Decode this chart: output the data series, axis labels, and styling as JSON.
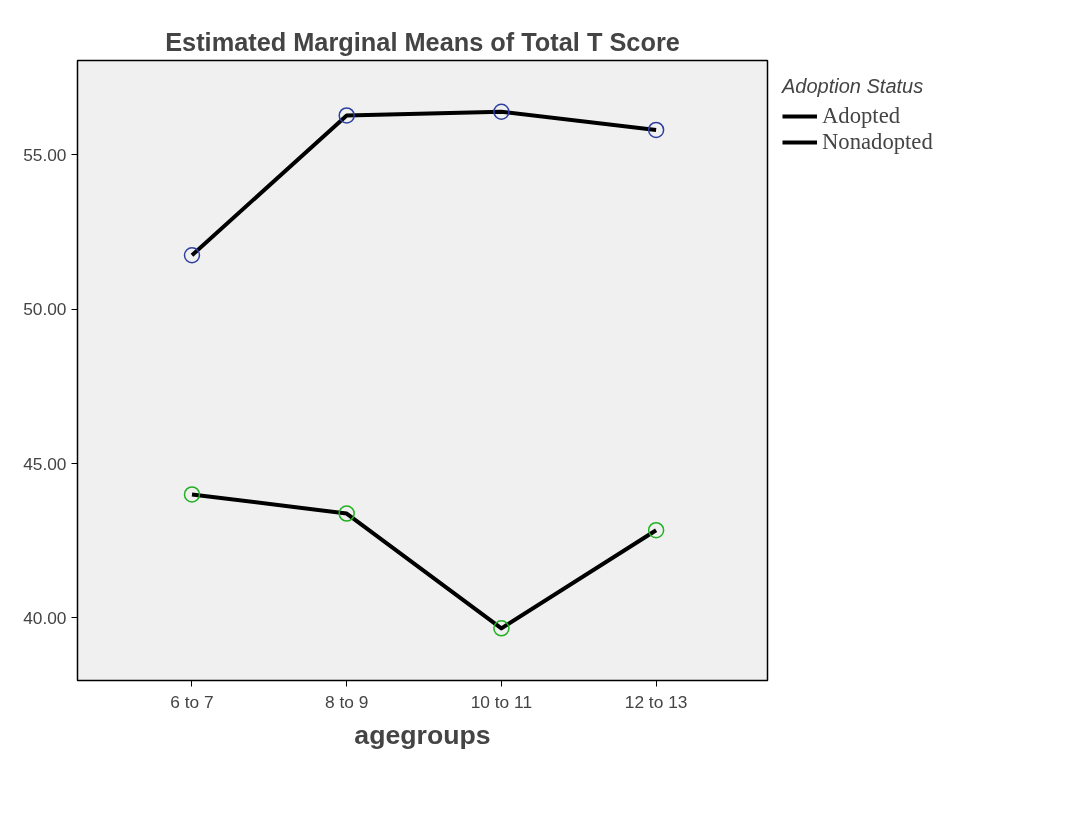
{
  "chart_data": {
    "type": "line",
    "title": "Estimated Marginal Means of Total T Score",
    "xlabel": "agegroups",
    "legend_title": "Adoption Status",
    "categories": [
      "6 to 7",
      "8 to 9",
      "10 to 11",
      "12 to 13"
    ],
    "series": [
      {
        "name": "Adopted",
        "color": "#000000",
        "colors": [
          "#2e3fa0",
          "#2e3fa0",
          "#2e3fa0",
          "#2e3fa0"
        ],
        "values": [
          51.75,
          56.28,
          56.4,
          55.81
        ]
      },
      {
        "name": "Nonadopted",
        "color": "#000000",
        "colors": [
          "#22b022",
          "#22b022",
          "#22b022",
          "#22b022"
        ],
        "values": [
          44.0,
          43.38,
          39.66,
          42.84
        ]
      }
    ],
    "ylim": [
      37.97,
      58.06
    ],
    "yticks": [
      {
        "value": 40,
        "label": "40.00"
      },
      {
        "value": 45,
        "label": "45.00"
      },
      {
        "value": 50,
        "label": "50.00"
      },
      {
        "value": 55,
        "label": "55.00"
      }
    ],
    "grid": false,
    "legend": "top right",
    "marker": "circle",
    "line_style": "solid"
  }
}
